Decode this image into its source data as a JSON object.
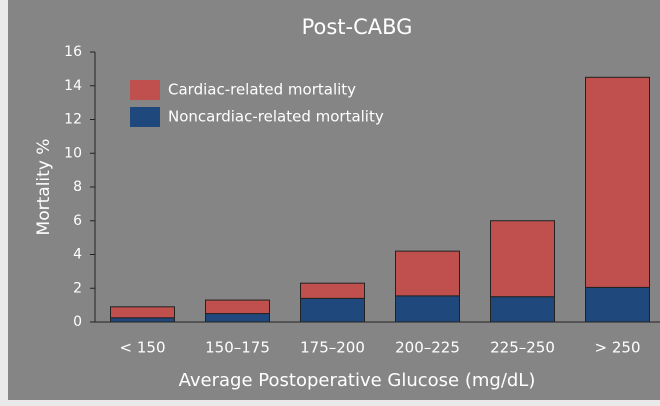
{
  "chart_data": {
    "type": "stacked_bar",
    "title": "Post-CABG",
    "xlabel": "Average Postoperative Glucose (mg/dL)",
    "ylabel": "Mortality %",
    "categories": [
      "< 150",
      "150–175",
      "175–200",
      "200–225",
      "225–250",
      "> 250"
    ],
    "series": [
      {
        "name": "Noncardiac-related mortality",
        "color": "#1f497d",
        "values": [
          0.25,
          0.5,
          1.4,
          1.55,
          1.5,
          2.05
        ]
      },
      {
        "name": "Cardiac-related mortality",
        "color": "#c0504d",
        "values": [
          0.65,
          0.8,
          0.9,
          2.65,
          4.5,
          12.45
        ]
      }
    ],
    "ylim": [
      0,
      16
    ],
    "yticks": [
      0,
      2,
      4,
      6,
      8,
      10,
      12,
      14,
      16
    ]
  }
}
